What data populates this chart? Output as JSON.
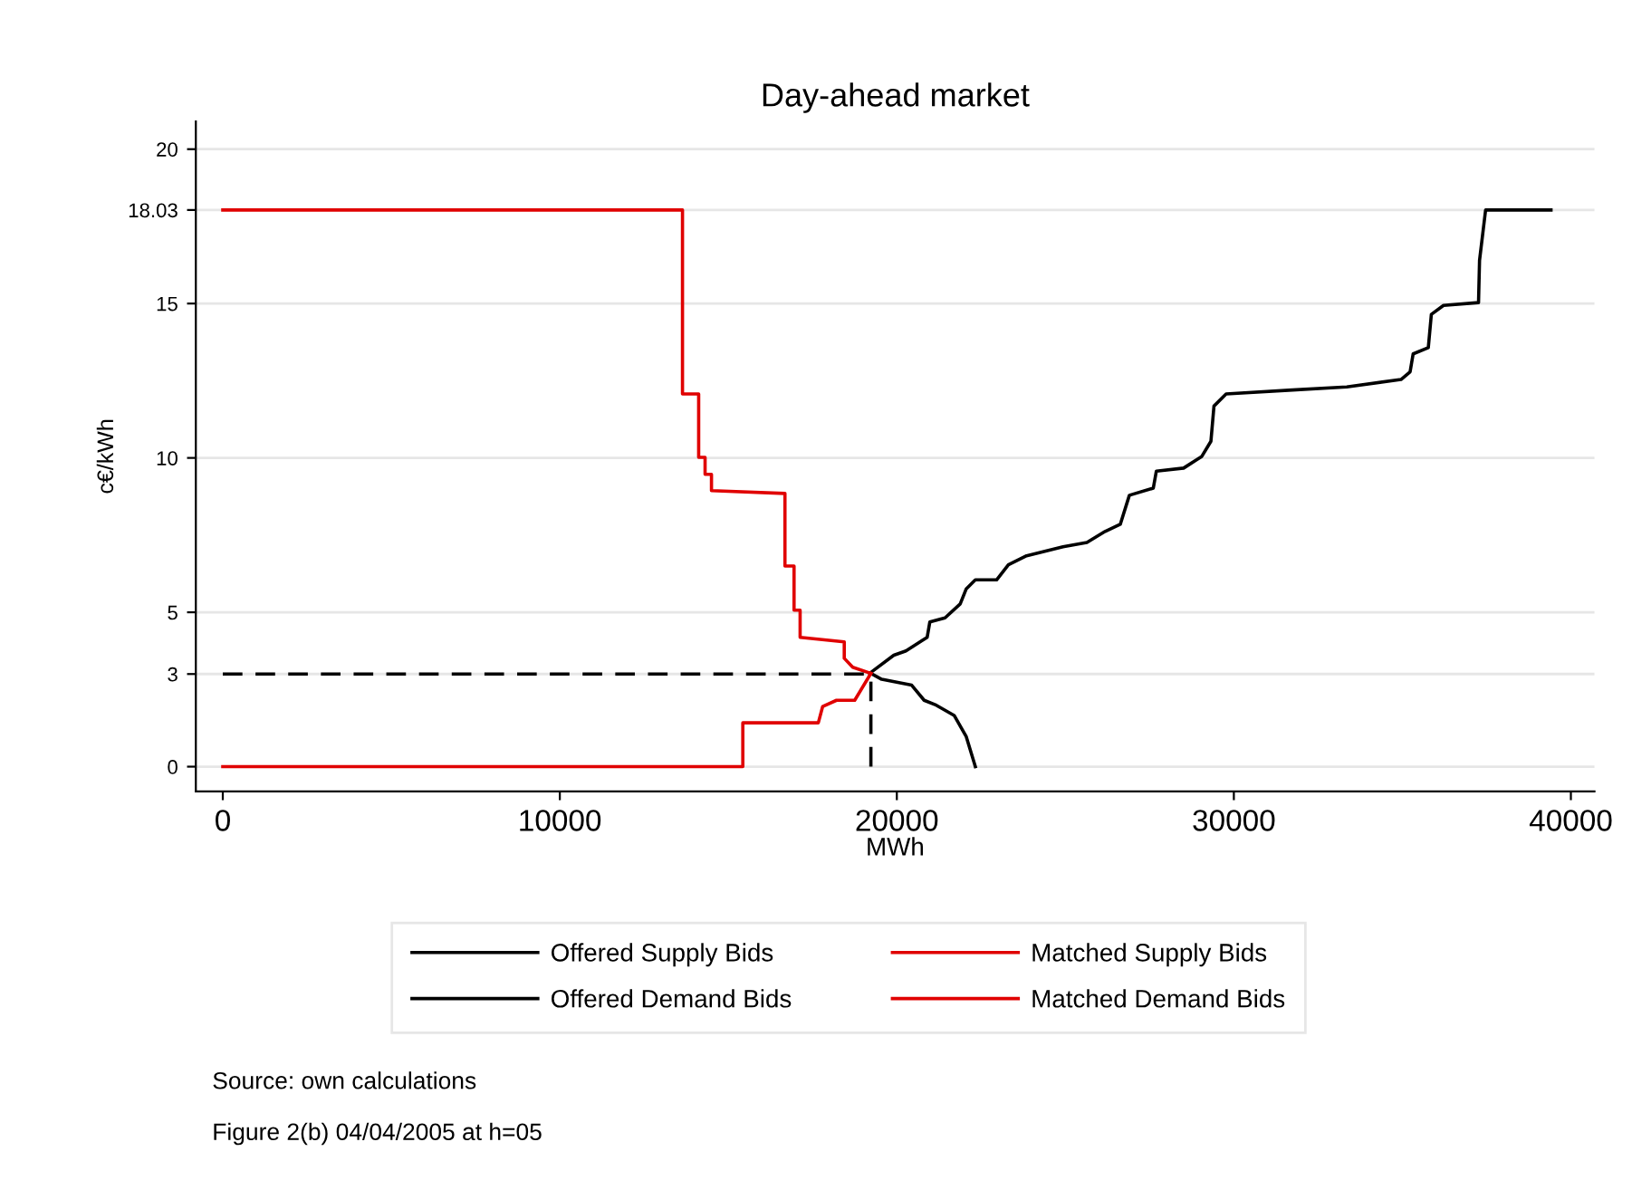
{
  "chart_data": {
    "type": "line",
    "title": "Day-ahead market",
    "xlabel": "MWh",
    "ylabel": "c€/kWh",
    "xlim": [
      -800,
      40700
    ],
    "ylim": [
      -0.8,
      20.9
    ],
    "xticks": [
      0,
      10000,
      20000,
      30000,
      40000
    ],
    "yticks": [
      0,
      3,
      5,
      10,
      15,
      18.03,
      20
    ],
    "grid": "y",
    "legend": "bottom",
    "marker": "none",
    "line_style": "solid",
    "annotations": [
      "Source: own calculations",
      "Figure 2(b) 04/04/2005 at h=05"
    ],
    "series": [
      {
        "name": "Offered Supply Bids",
        "color": "#000000",
        "x": [
          19190,
          19910,
          20270,
          20900,
          20980,
          21430,
          21880,
          22060,
          22330,
          22960,
          23310,
          23850,
          24930,
          25640,
          26180,
          26630,
          26900,
          27610,
          27700,
          28510,
          29050,
          29320,
          29410,
          29770,
          31740,
          33350,
          34960,
          35230,
          35320,
          35770,
          35860,
          36220,
          37260,
          37290,
          37470,
          39410
        ],
        "values": [
          3.02,
          3.61,
          3.75,
          4.19,
          4.69,
          4.82,
          5.27,
          5.76,
          6.05,
          6.05,
          6.54,
          6.83,
          7.12,
          7.26,
          7.62,
          7.85,
          8.79,
          9.02,
          9.57,
          9.67,
          10.05,
          10.54,
          11.68,
          12.07,
          12.2,
          12.3,
          12.54,
          12.79,
          13.37,
          13.57,
          14.65,
          14.94,
          15.03,
          16.4,
          18.03,
          18.03
        ]
      },
      {
        "name": "Offered Demand Bids",
        "color": "#000000",
        "x": [
          19230,
          19550,
          20440,
          20810,
          21170,
          21700,
          22060,
          22330
        ],
        "values": [
          3.02,
          2.83,
          2.64,
          2.15,
          1.99,
          1.66,
          0.97,
          0
        ]
      },
      {
        "name": "Matched Supply Bids",
        "color": "#e00000",
        "x": [
          0,
          15430,
          15430,
          17670,
          17800,
          18210,
          18750,
          19230
        ],
        "values": [
          0,
          0,
          1.42,
          1.42,
          1.95,
          2.15,
          2.15,
          3.02
        ]
      },
      {
        "name": "Matched Demand Bids",
        "color": "#e00000",
        "x": [
          0,
          13640,
          13640,
          14120,
          14120,
          14310,
          14310,
          14500,
          14500,
          16680,
          16680,
          16950,
          16950,
          17130,
          17130,
          18440,
          18440,
          18690,
          19230
        ],
        "values": [
          18.03,
          18.03,
          12.07,
          12.07,
          10.02,
          10.02,
          9.47,
          9.47,
          8.94,
          8.85,
          6.5,
          6.5,
          5.07,
          5.07,
          4.19,
          4.04,
          3.51,
          3.22,
          3.02
        ]
      },
      {
        "color": "#000000",
        "line_style": "dashed",
        "x": [
          0,
          19230
        ],
        "values": [
          3,
          3
        ]
      },
      {
        "color": "#000000",
        "line_style": "dashed",
        "x": [
          19230,
          19230
        ],
        "values": [
          0,
          3
        ]
      }
    ]
  }
}
